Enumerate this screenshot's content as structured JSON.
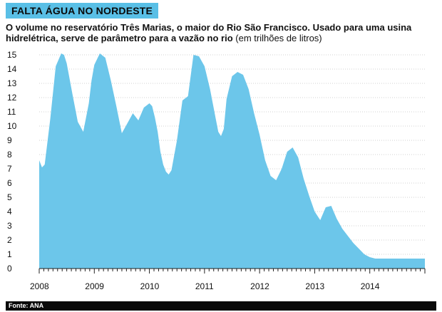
{
  "header": {
    "badge": "FALTA ÁGUA NO NORDESTE",
    "subtitle_main": "O volume no reservatório Três Marias, o maior do Rio São Francisco. Usado para uma usina hidrelétrica, serve de parâmetro para a vazão no rio",
    "subtitle_unit": "(em trilhões de litros)"
  },
  "footer": {
    "source": "Fonte: ANA"
  },
  "colors": {
    "fill": "#6cc6ea",
    "badge": "#59bfe6",
    "axis": "#222222",
    "grid": "#d0d0d0"
  },
  "chart_data": {
    "type": "area",
    "title": "",
    "xlabel": "",
    "ylabel": "",
    "ylim": [
      0,
      15
    ],
    "xlim": [
      2008.0,
      2015.0
    ],
    "grid": true,
    "legend": "none",
    "y_ticks": [
      "0",
      "1",
      "2",
      "3",
      "4",
      "5",
      "6",
      "7",
      "8",
      "9",
      "10",
      "11",
      "12",
      "13",
      "14",
      "15"
    ],
    "x_tick_labels": [
      {
        "year": 2008,
        "label": "2008"
      },
      {
        "year": 2009,
        "label": "2009"
      },
      {
        "year": 2010,
        "label": "2010"
      },
      {
        "year": 2011,
        "label": "2011"
      },
      {
        "year": 2012,
        "label": "2012"
      },
      {
        "year": 2013,
        "label": "2013"
      },
      {
        "year": 2014,
        "label": "2014"
      }
    ],
    "series": [
      {
        "x": [
          2008.0,
          2008.05,
          2008.1,
          2008.2,
          2008.3,
          2008.4,
          2008.45,
          2008.5,
          2008.6,
          2008.7,
          2008.8,
          2008.9,
          2008.95,
          2009.0,
          2009.1,
          2009.2,
          2009.3,
          2009.4,
          2009.5,
          2009.6,
          2009.7,
          2009.8,
          2009.9,
          2010.0,
          2010.05,
          2010.1,
          2010.15,
          2010.2,
          2010.25,
          2010.3,
          2010.35,
          2010.4,
          2010.5,
          2010.6,
          2010.7,
          2010.8,
          2010.9,
          2011.0,
          2011.1,
          2011.2,
          2011.25,
          2011.3,
          2011.35,
          2011.4,
          2011.5,
          2011.6,
          2011.7,
          2011.8,
          2011.9,
          2012.0,
          2012.1,
          2012.2,
          2012.3,
          2012.4,
          2012.5,
          2012.6,
          2012.7,
          2012.8,
          2012.9,
          2013.0,
          2013.1,
          2013.2,
          2013.3,
          2013.4,
          2013.5,
          2013.6,
          2013.7,
          2013.8,
          2013.9,
          2014.0,
          2014.1,
          2014.15,
          2014.2,
          2014.3,
          2014.4,
          2014.5,
          2014.6,
          2014.7,
          2014.8,
          2014.9,
          2015.0
        ],
        "values": [
          7.6,
          7.1,
          7.3,
          10.5,
          14.2,
          15.1,
          15.0,
          14.4,
          12.3,
          10.3,
          9.6,
          11.6,
          13.2,
          14.3,
          15.1,
          14.8,
          13.2,
          11.4,
          9.5,
          10.2,
          10.9,
          10.4,
          11.3,
          11.6,
          11.4,
          10.6,
          9.6,
          8.2,
          7.3,
          6.8,
          6.6,
          6.9,
          9.0,
          11.8,
          12.1,
          15.0,
          14.9,
          14.2,
          12.6,
          10.6,
          9.6,
          9.3,
          9.8,
          11.9,
          13.5,
          13.8,
          13.6,
          12.6,
          10.9,
          9.4,
          7.6,
          6.5,
          6.2,
          7.0,
          8.2,
          8.5,
          7.8,
          6.3,
          5.1,
          4.0,
          3.4,
          4.3,
          4.4,
          3.5,
          2.8,
          2.3,
          1.8,
          1.4,
          1.0,
          0.8,
          0.7,
          0.7,
          0.7,
          0.7,
          0.7,
          0.7,
          0.7,
          0.7,
          0.7,
          0.7,
          0.7
        ]
      }
    ]
  }
}
